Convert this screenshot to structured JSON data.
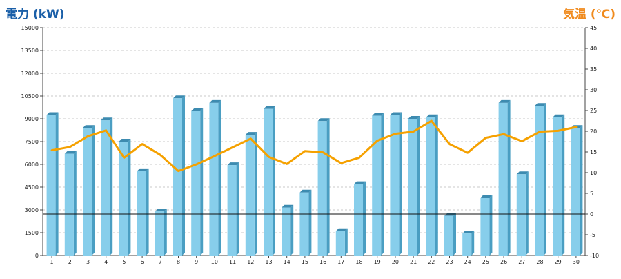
{
  "chart_data": {
    "type": "bar",
    "left_axis_title": "電力 (kW)",
    "right_axis_title": "気温 (℃)",
    "categories": [
      "1",
      "2",
      "3",
      "4",
      "5",
      "6",
      "7",
      "8",
      "9",
      "10",
      "11",
      "12",
      "13",
      "14",
      "15",
      "16",
      "17",
      "18",
      "19",
      "20",
      "21",
      "22",
      "23",
      "24",
      "25",
      "26",
      "27",
      "28",
      "29",
      "30"
    ],
    "series": [
      {
        "type": "bar",
        "axis": "left",
        "color": "#87ceeb",
        "values": [
          9250,
          6700,
          8400,
          8900,
          7500,
          5550,
          2900,
          10350,
          9500,
          10050,
          5950,
          7950,
          9650,
          3150,
          4150,
          8850,
          1600,
          4700,
          9200,
          9250,
          9000,
          9100,
          2600,
          1450,
          3800,
          10050,
          5350,
          9850,
          9100,
          8400
        ]
      },
      {
        "type": "line",
        "axis": "right",
        "color": "#f5a100",
        "values": [
          15.4,
          16.2,
          18.8,
          20.2,
          13.6,
          16.9,
          14.3,
          10.4,
          12.0,
          14.0,
          16.1,
          18.2,
          13.8,
          12.1,
          15.2,
          14.9,
          12.3,
          13.6,
          17.7,
          19.4,
          19.9,
          22.5,
          16.9,
          14.8,
          18.4,
          19.3,
          17.6,
          19.9,
          20.1,
          21.0
        ]
      }
    ],
    "y_left": {
      "min": 0,
      "max": 15000,
      "step": 1500,
      "ticks": [
        "0",
        "1500",
        "3000",
        "4500",
        "6000",
        "7500",
        "9000",
        "10500",
        "12000",
        "13500",
        "15000"
      ]
    },
    "y_right": {
      "min": -10,
      "max": 45,
      "step": 5,
      "ticks": [
        "-10",
        "-5",
        "0",
        "5",
        "10",
        "15",
        "20",
        "25",
        "30",
        "35",
        "40",
        "45"
      ]
    },
    "reference_line_right": 0,
    "grid": true,
    "legend": "none"
  }
}
